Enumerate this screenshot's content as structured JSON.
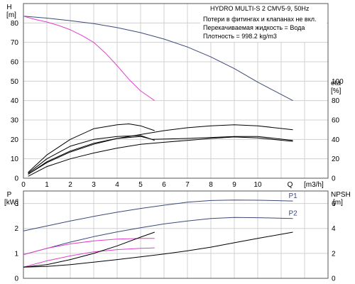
{
  "chart_data": [
    {
      "type": "line",
      "title": "HYDRO MULTI-S 2 CMV5-9, 50Hz",
      "notes": [
        "Потери в фитингах и клапанах не вкл.",
        "Перекачиваемая жидкость = Вода",
        "Плотность = 998.2 kg/m3"
      ],
      "left_axis": {
        "label": "H",
        "unit": "[m]",
        "ylim": [
          0,
          90
        ],
        "ticks": [
          0,
          10,
          20,
          30,
          40,
          50,
          60,
          70,
          80
        ]
      },
      "right_axis": {
        "label": "eta",
        "unit": "[%]",
        "ylim": [
          0,
          180
        ],
        "ticks": [
          0,
          20,
          40,
          60,
          80,
          100
        ]
      },
      "x_axis": {
        "label": "Q",
        "unit": "[m3/h]",
        "xlim": [
          0,
          13
        ],
        "ticks": [
          0,
          1,
          2,
          3,
          4,
          5,
          6,
          7,
          8,
          9,
          10
        ],
        "tick_q_label_at": 11.5
      },
      "grid": true,
      "series": [
        {
          "axis": "left",
          "color": "#3d4a78",
          "x": [
            0,
            1,
            2,
            3,
            4,
            5,
            6,
            7,
            8,
            9,
            10,
            11.5
          ],
          "values": [
            83.5,
            82.5,
            81.2,
            79.7,
            77.6,
            75.0,
            71.7,
            67.6,
            62.5,
            56.5,
            49.5,
            40
          ]
        },
        {
          "axis": "left",
          "color": "#e040d0",
          "x": [
            0,
            0.5,
            1,
            1.5,
            2,
            2.5,
            3,
            3.5,
            4,
            4.5,
            5,
            5.6
          ],
          "values": [
            83.5,
            81.8,
            80.5,
            78.7,
            76.5,
            73.5,
            70,
            64.5,
            58,
            51,
            45,
            40
          ]
        },
        {
          "axis": "right",
          "color": "#000000",
          "x": [
            0.2,
            1,
            2,
            3,
            4,
            5,
            6,
            7,
            8,
            9,
            10,
            11.5
          ],
          "values": [
            4,
            16,
            27,
            35,
            41,
            45,
            49,
            52,
            54,
            55,
            54,
            50
          ]
        },
        {
          "axis": "right",
          "color": "#000000",
          "x": [
            0.2,
            1,
            2,
            3,
            4,
            5,
            5.5,
            7,
            9,
            10,
            11.5
          ],
          "values": [
            4,
            17,
            28,
            36,
            41,
            43,
            40,
            41,
            43,
            43,
            39
          ]
        },
        {
          "axis": "right",
          "color": "#000000",
          "x": [
            0.2,
            1,
            2,
            3,
            4,
            5,
            6,
            7,
            8,
            9,
            10,
            11.5
          ],
          "values": [
            2,
            12,
            20,
            26,
            31,
            35,
            37,
            39,
            41,
            42.5,
            41.5,
            38
          ]
        },
        {
          "axis": "right",
          "color": "#000000",
          "x": [
            0.2,
            1,
            2,
            3,
            4,
            4.5,
            5,
            5.6
          ],
          "values": [
            6,
            24,
            40,
            51,
            55,
            56,
            54,
            49
          ]
        },
        {
          "axis": "right",
          "color": "#000000",
          "x": [
            0.2,
            1,
            2,
            3,
            4,
            5,
            5.6
          ],
          "values": [
            5,
            20,
            33,
            40,
            43,
            44,
            39
          ]
        }
      ]
    },
    {
      "type": "line",
      "left_axis": {
        "label": "P",
        "unit": "[kW]",
        "ylim": [
          0,
          3.5
        ],
        "ticks": [
          0,
          1,
          2,
          3
        ]
      },
      "right_axis": {
        "label": "NPSH",
        "unit": "[m]",
        "ylim": [
          0,
          7
        ],
        "ticks": [
          0,
          2,
          4,
          6
        ]
      },
      "x_axis": {
        "xlim": [
          0,
          13
        ]
      },
      "grid": true,
      "series": [
        {
          "name": "P1",
          "axis": "left",
          "color": "#3d4a78",
          "x": [
            0,
            1,
            2,
            3,
            4,
            5,
            6,
            7,
            8,
            9,
            10,
            11.5
          ],
          "values": [
            1.9,
            2.1,
            2.3,
            2.48,
            2.65,
            2.8,
            2.93,
            3.05,
            3.12,
            3.14,
            3.13,
            3.1
          ]
        },
        {
          "name": "P2",
          "axis": "left",
          "color": "#3d4a78",
          "x": [
            0,
            1,
            2,
            3,
            4,
            5,
            6,
            7,
            8,
            9,
            10,
            11.5
          ],
          "values": [
            0.95,
            1.2,
            1.45,
            1.67,
            1.86,
            2.03,
            2.18,
            2.3,
            2.4,
            2.44,
            2.43,
            2.4
          ]
        },
        {
          "axis": "left",
          "color": "#e040d0",
          "x": [
            0,
            1,
            2,
            3,
            4,
            5,
            5.6
          ],
          "values": [
            0.95,
            1.2,
            1.38,
            1.5,
            1.57,
            1.6,
            1.6
          ]
        },
        {
          "axis": "left",
          "color": "#e040d0",
          "x": [
            0,
            1,
            2,
            3,
            4,
            5,
            5.6
          ],
          "values": [
            0.45,
            0.7,
            0.9,
            1.06,
            1.15,
            1.2,
            1.22
          ]
        },
        {
          "axis": "right",
          "color": "#000000",
          "x": [
            0,
            1,
            2,
            3,
            4,
            5,
            6,
            7,
            8,
            9,
            10,
            11.5
          ],
          "values": [
            0.9,
            0.95,
            1.1,
            1.3,
            1.5,
            1.72,
            1.95,
            2.2,
            2.5,
            2.85,
            3.2,
            3.7
          ]
        },
        {
          "axis": "right",
          "color": "#000000",
          "x": [
            0,
            1,
            2,
            3,
            4,
            5,
            5.6
          ],
          "values": [
            0.9,
            1.1,
            1.5,
            2.0,
            2.6,
            3.3,
            3.7
          ]
        }
      ]
    }
  ]
}
